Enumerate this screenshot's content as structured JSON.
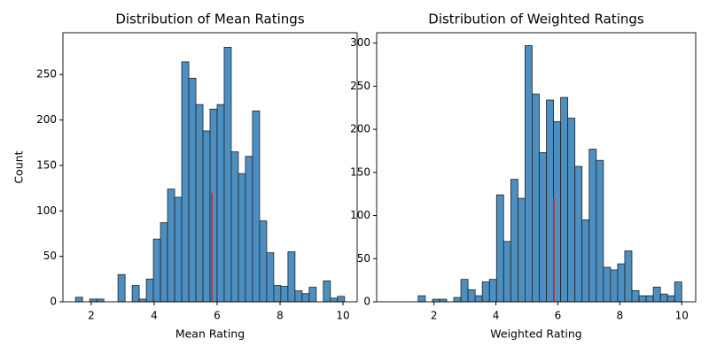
{
  "chart_data": [
    {
      "type": "histogram",
      "title": "Distribution of Mean Ratings",
      "x_label": "Mean Rating",
      "y_label": "Count",
      "color": "#4c8fc0",
      "bins": [
        1.5,
        1.725,
        1.95,
        2.175,
        2.4,
        2.625,
        2.85,
        3.075,
        3.3,
        3.525,
        3.75,
        3.975,
        4.2,
        4.425,
        4.65,
        4.875,
        5.1,
        5.325,
        5.55,
        5.775,
        6.0,
        6.225,
        6.45,
        6.675,
        6.9,
        7.125,
        7.35,
        7.575,
        7.8,
        8.025,
        8.25,
        8.475,
        8.7,
        8.925,
        9.15,
        9.375,
        9.6,
        9.825,
        10.05
      ],
      "values": [
        5,
        0,
        3,
        3,
        0,
        0,
        30,
        0,
        18,
        3,
        25,
        69,
        87,
        124,
        115,
        264,
        246,
        217,
        188,
        212,
        217,
        280,
        165,
        141,
        160,
        210,
        89,
        54,
        18,
        17,
        55,
        12,
        9,
        16,
        0,
        23,
        4,
        6
      ],
      "mean_line": {
        "x": 5.83,
        "y": 120,
        "color": "#d62728"
      },
      "xlim": [
        1.1,
        10.45
      ],
      "ylim": [
        0,
        296
      ],
      "xticks": [
        2,
        4,
        6,
        8,
        10
      ],
      "yticks": [
        0,
        50,
        100,
        150,
        200,
        250
      ]
    },
    {
      "type": "histogram",
      "title": "Distribution of Weighted Ratings",
      "x_label": "Weighted Rating",
      "color": "#4c8fc0",
      "bins": [
        1.49,
        1.72,
        1.95,
        2.18,
        2.41,
        2.64,
        2.87,
        3.1,
        3.33,
        3.56,
        3.79,
        4.02,
        4.25,
        4.48,
        4.71,
        4.94,
        5.17,
        5.4,
        5.63,
        5.86,
        6.09,
        6.32,
        6.55,
        6.78,
        7.01,
        7.24,
        7.47,
        7.7,
        7.93,
        8.16,
        8.39,
        8.62,
        8.85,
        9.08,
        9.31,
        9.54,
        9.77,
        10.0
      ],
      "values": [
        7,
        0,
        3,
        3,
        0,
        5,
        26,
        14,
        7,
        23,
        26,
        124,
        70,
        142,
        120,
        297,
        241,
        173,
        234,
        209,
        237,
        213,
        157,
        95,
        177,
        164,
        40,
        37,
        44,
        59,
        13,
        7,
        7,
        17,
        9,
        7,
        23
      ],
      "mean_line": {
        "x": 5.87,
        "y": 120,
        "color": "#d62728"
      },
      "xlim": [
        0.15,
        10.45
      ],
      "ylim": [
        0,
        312
      ],
      "xticks": [
        2,
        4,
        6,
        8,
        10
      ],
      "yticks": [
        0,
        50,
        100,
        150,
        200,
        250,
        300
      ]
    }
  ]
}
